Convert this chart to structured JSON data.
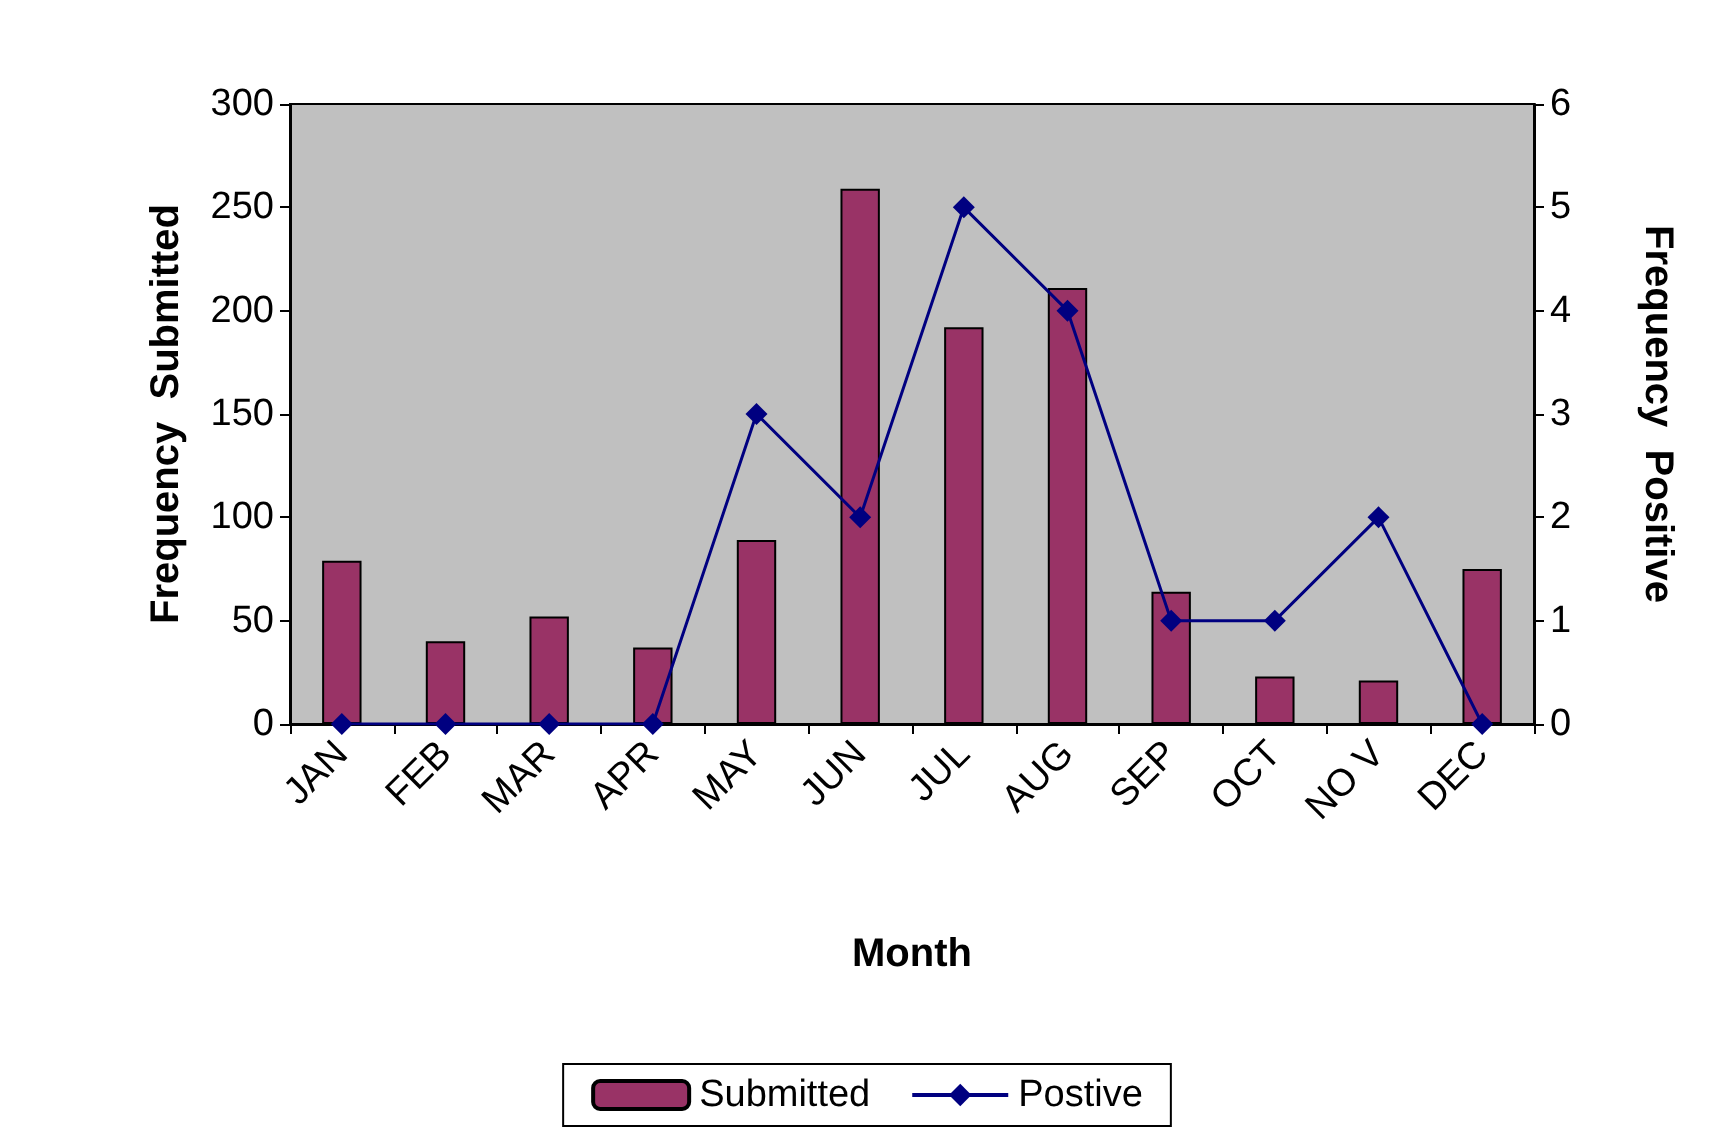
{
  "chart_data": {
    "type": "bar",
    "xlabel": "Month",
    "ylabel": "Frequency  Submitted",
    "y2label": "Frequency  Positive",
    "categories": [
      "JAN",
      "FEB",
      "MAR",
      "APR",
      "MAY",
      "JUN",
      "JUL",
      "AUG",
      "SEP",
      "OCT",
      "NO V",
      "DEC"
    ],
    "series": [
      {
        "name": "Submitted",
        "color": "#993366",
        "values": [
          79,
          40,
          52,
          37,
          89,
          259,
          192,
          211,
          64,
          23,
          21,
          75
        ]
      },
      {
        "name": "Postive",
        "type": "line",
        "axis": "y2",
        "color": "#000080",
        "marker": "diamond",
        "values": [
          0,
          0,
          0,
          0,
          3,
          2,
          5,
          4,
          1,
          1,
          2,
          0
        ]
      }
    ],
    "ylim": [
      0,
      300
    ],
    "yticks": [
      0,
      50,
      100,
      150,
      200,
      250,
      300
    ],
    "y2lim": [
      0,
      6
    ],
    "y2ticks": [
      0,
      1,
      2,
      3,
      4,
      5,
      6
    ],
    "grid": false,
    "legend": "bottom"
  }
}
